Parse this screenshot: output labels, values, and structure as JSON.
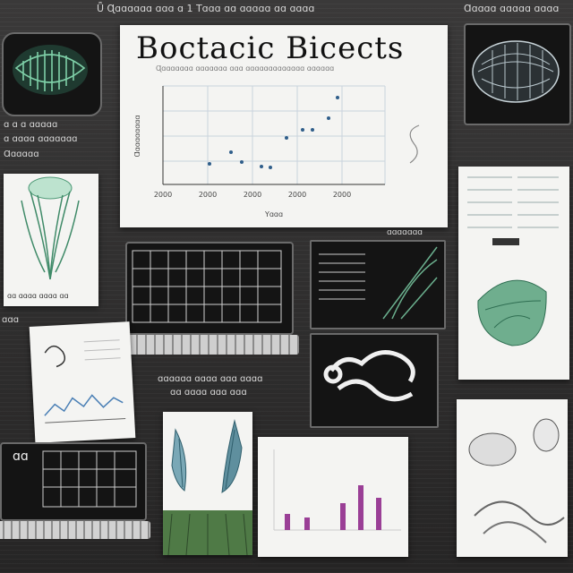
{
  "header": {
    "caption_left": "Ǖ Ɋɑɑɑɑɑɑ ɑɑɑ ɑ 1   Tɑɑɑ ɑɑ ɑɑɑɑɑ ɑɑ ɑɑɑɑ",
    "caption_right": "Ɑɑɑɑɑ ɑɑɑɑɑ ɑɑɑɑ"
  },
  "main_panel": {
    "title": "Boctacic Bicects",
    "subtitle": "Ɋɑɑɑɑɑɑɑ ɑɑɑɑɑɑɑ ɑɑɑ ɑɑɑɑɑɑɑɑɑɑɑɑɑ ɑɑɑɑɑɑ",
    "x_ticks": [
      "2000",
      "2000",
      "2000",
      "2000",
      "2000"
    ],
    "xlabel": "Yɑɑɑ",
    "ylabel": "Ɑɑɑɑɑɑɑɑɑ"
  },
  "left_labels": {
    "block1_line1": "ɑ ɑ ɑ ɑɑɑɑɑ",
    "block1_line2": "ɑ ɑɑɑɑ ɑɑɑɑɑɑɑ",
    "block1_line3": "Ɑɑɑɑɑɑ",
    "card_caption": "ɑɑ ɑɑɑɑ ɑɑɑɑ ɑɑ",
    "side_label": "ɑɑɑ"
  },
  "middle_labels": {
    "caption_line1": "ɑɑɑɑɑɑ ɑɑɑɑ ɑɑɑ ɑɑɑɑ",
    "caption_line2": "ɑɑ ɑɑɑɑ ɑɑɑ ɑɑɑ",
    "small_label": "ɑɑɑɑɑɑɑ",
    "laptop_label": "ɑɑ"
  },
  "colors": {
    "accent_green": "#5fae8a",
    "chart_point": "#2f5e8a",
    "bar_purple": "#9a3f96"
  }
}
